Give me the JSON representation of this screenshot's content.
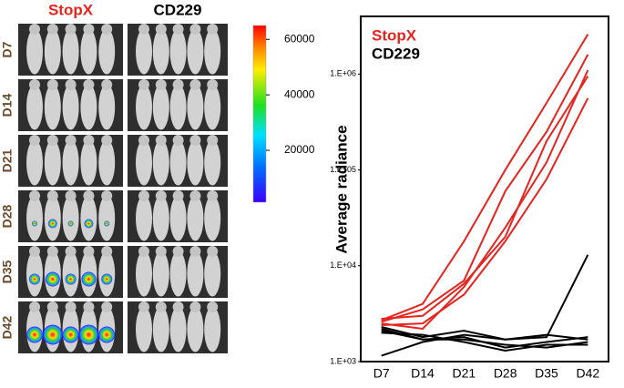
{
  "image_panel": {
    "groups": [
      "StopX",
      "CD229"
    ],
    "rows": [
      "D7",
      "D14",
      "D21",
      "D28",
      "D35",
      "D42"
    ],
    "colorbar": {
      "lim": [
        1300,
        65000
      ],
      "ticks": [
        20000,
        40000,
        60000
      ]
    }
  },
  "chart_data": {
    "type": "line",
    "y_label": "Average radiance",
    "categories": [
      "D7",
      "D14",
      "D21",
      "D28",
      "D35",
      "D42"
    ],
    "log_y": true,
    "ylim": [
      1000,
      4000000
    ],
    "yticks": [
      {
        "value": 1000,
        "label": "1.E+03"
      },
      {
        "value": 10000,
        "label": "1.E+04"
      },
      {
        "value": 100000,
        "label": "1.E+05"
      },
      {
        "value": 1000000,
        "label": "1.E+06"
      }
    ],
    "series": [
      {
        "name": "StopX",
        "color": "#e8231e",
        "values": [
          [
            2700,
            4000,
            18000,
            100000,
            500000,
            2600000
          ],
          [
            2600,
            3500,
            7000,
            60000,
            250000,
            1600000
          ],
          [
            2500,
            2200,
            6000,
            25000,
            120000,
            1100000
          ],
          [
            2800,
            3000,
            6500,
            20000,
            200000,
            950000
          ],
          [
            2400,
            2500,
            5000,
            18000,
            80000,
            560000
          ]
        ]
      },
      {
        "name": "CD229",
        "color": "#000000",
        "values": [
          [
            1150,
            1600,
            1900,
            1700,
            1800,
            13000
          ],
          [
            2300,
            1800,
            2100,
            1700,
            1900,
            1700
          ],
          [
            2100,
            1700,
            1800,
            1400,
            1600,
            1800
          ],
          [
            2000,
            1900,
            1600,
            1300,
            1500,
            1500
          ],
          [
            2200,
            1700,
            1700,
            1500,
            1400,
            1600
          ]
        ]
      }
    ]
  }
}
